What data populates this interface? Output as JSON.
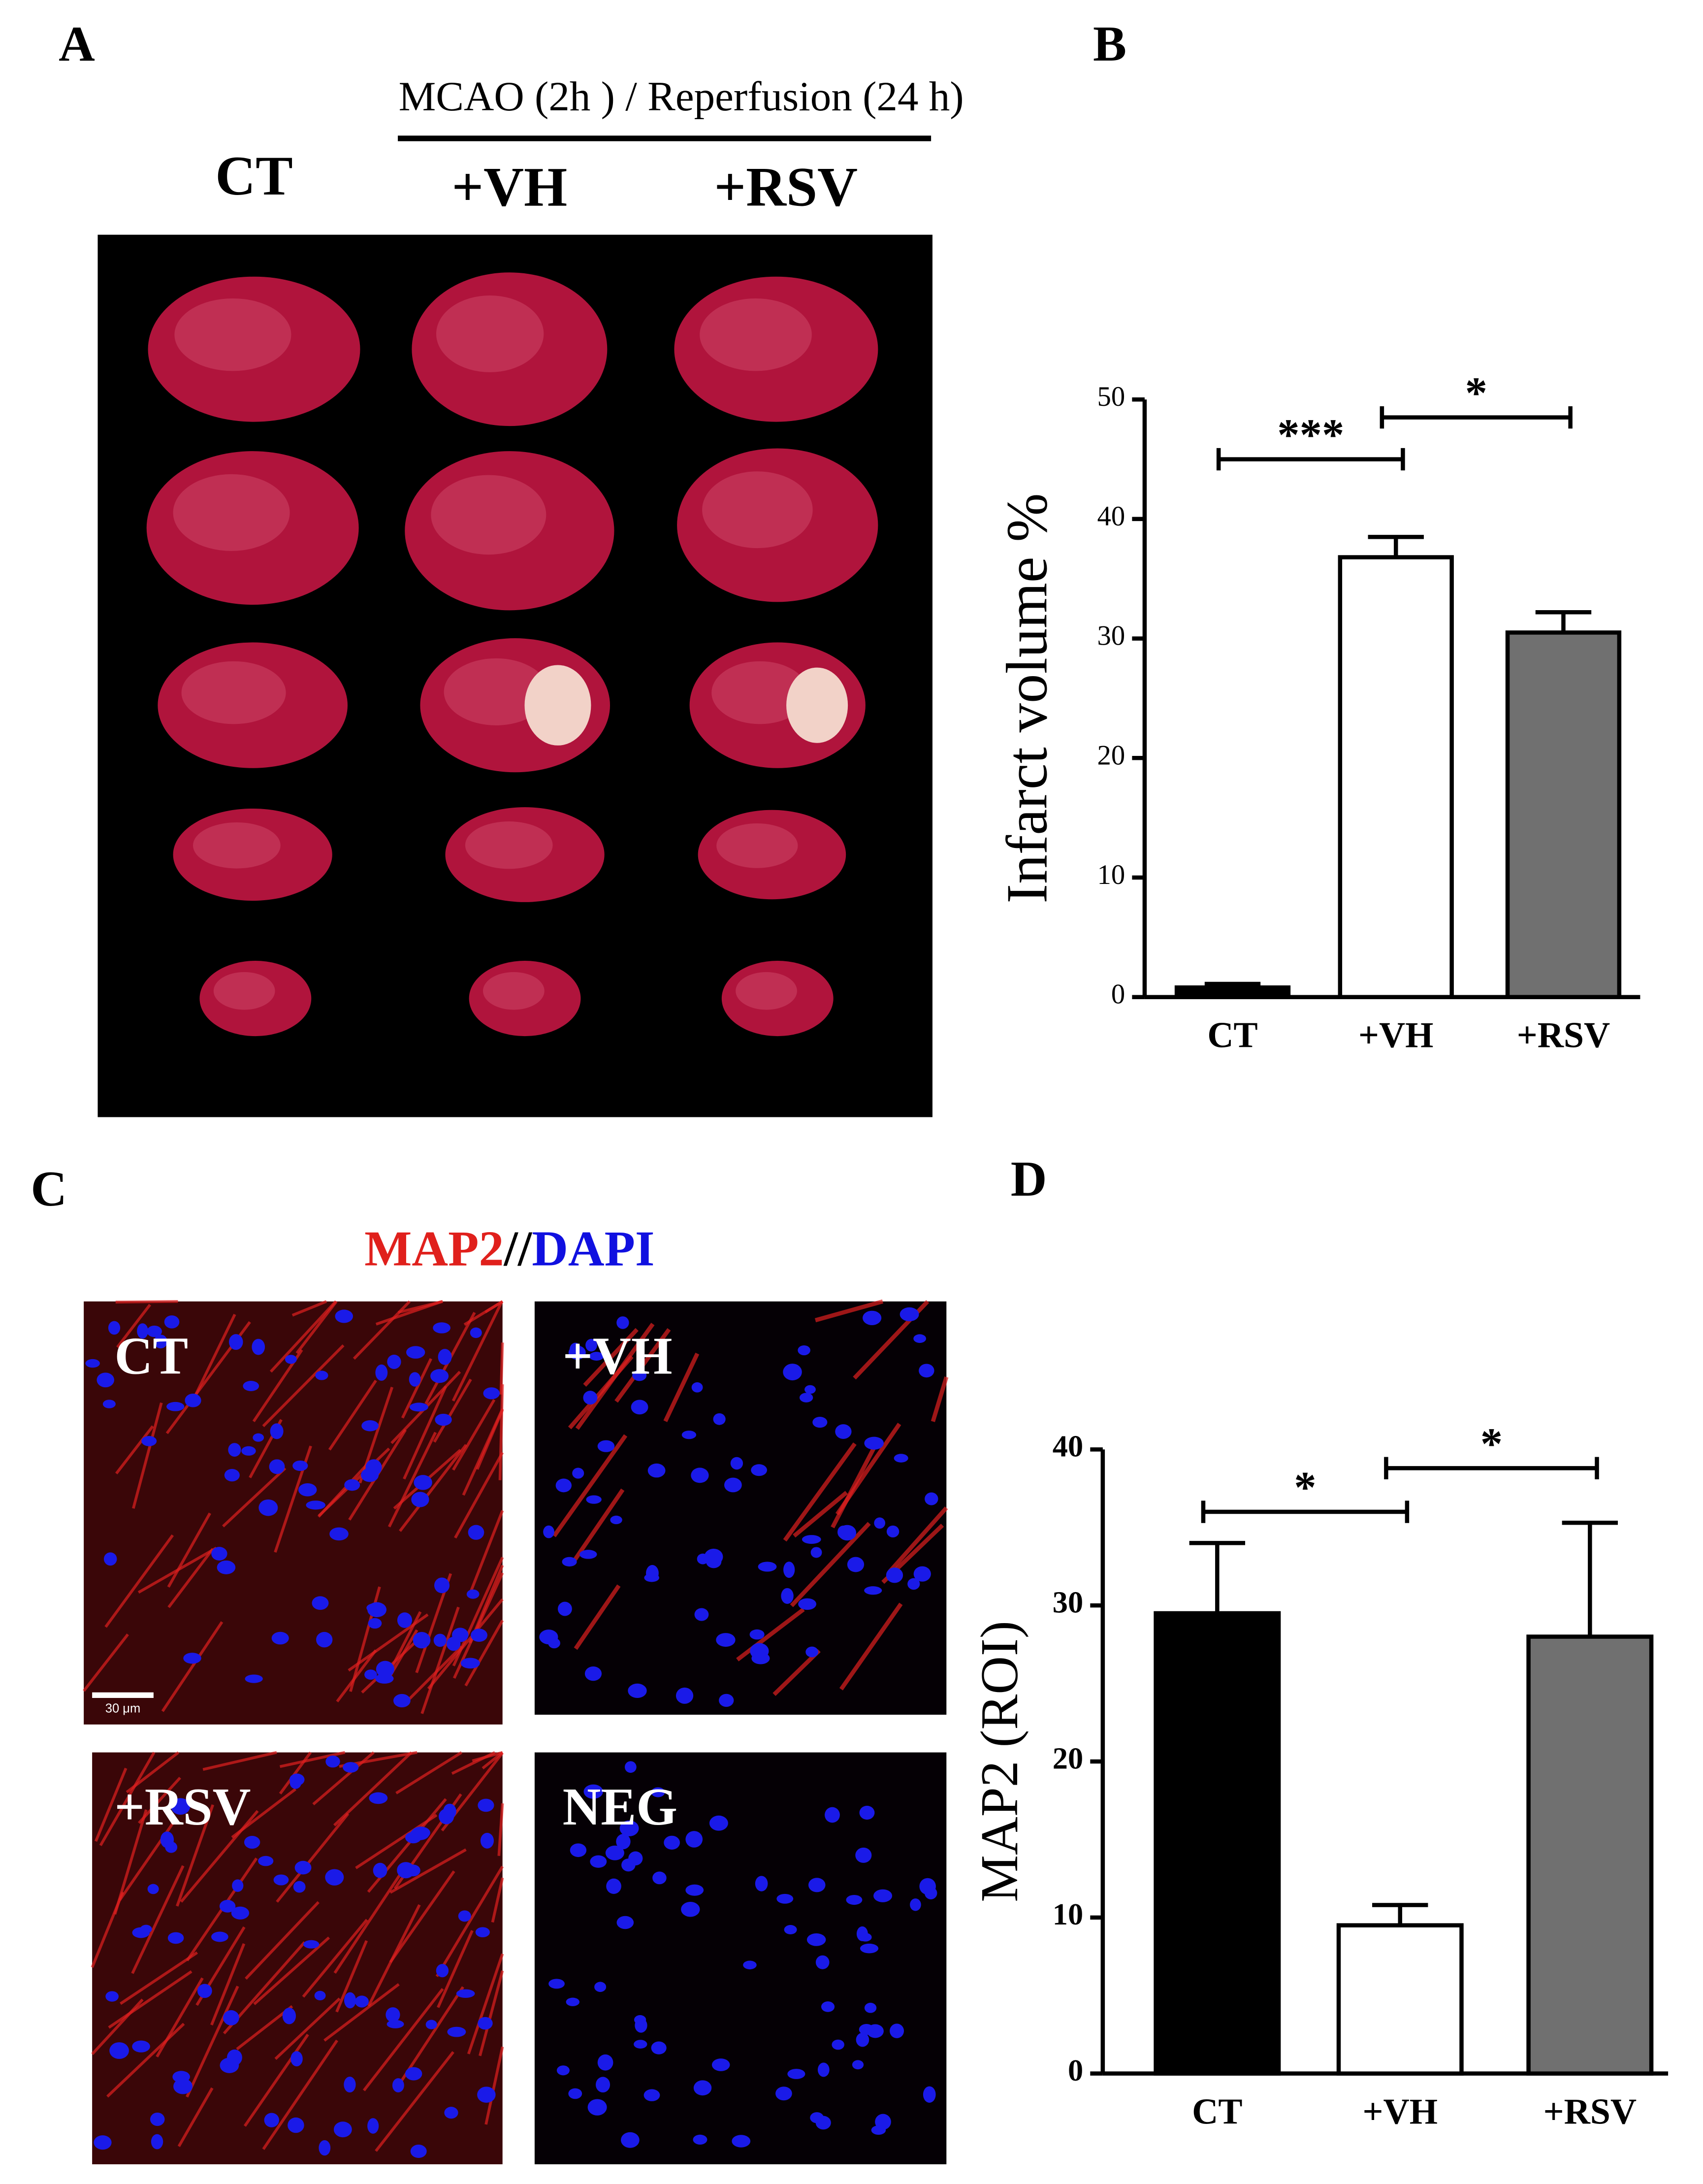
{
  "panel_letters": [
    "A",
    "B",
    "C",
    "D"
  ],
  "panel_a": {
    "header": "MCAO (2h ) / Reperfusion (24 h)",
    "groups": [
      "CT",
      "+VH",
      "+RSV"
    ]
  },
  "panel_c": {
    "title_parts": [
      "MAP2",
      "//",
      "DAPI"
    ],
    "image_labels": [
      "CT",
      "+VH",
      "+RSV",
      "NEG"
    ],
    "scale_bar": "30 μm"
  },
  "chart_data": [
    {
      "type": "bar",
      "y_label": "Infarct volume %",
      "categories": [
        "CT",
        "+VH",
        "+RSV"
      ],
      "values": [
        0.8,
        36.8,
        30.5
      ],
      "errors": [
        0.3,
        1.7,
        1.7
      ],
      "colors": [
        "#000000",
        "#ffffff",
        "#707070"
      ],
      "ylim": [
        0,
        50
      ],
      "yticks": [
        0,
        10,
        20,
        30,
        40,
        50
      ],
      "annotations": [
        "***",
        "*"
      ]
    },
    {
      "type": "bar",
      "y_label": "MAP2 (ROI)",
      "categories": [
        "CT",
        "+VH",
        "+RSV"
      ],
      "values": [
        29.5,
        9.5,
        28
      ],
      "errors": [
        4.5,
        1.3,
        7.3
      ],
      "colors": [
        "#000000",
        "#ffffff",
        "#707070"
      ],
      "ylim": [
        0,
        40
      ],
      "yticks": [
        0,
        10,
        20,
        30,
        40
      ],
      "annotations": [
        "*",
        "*"
      ]
    }
  ]
}
